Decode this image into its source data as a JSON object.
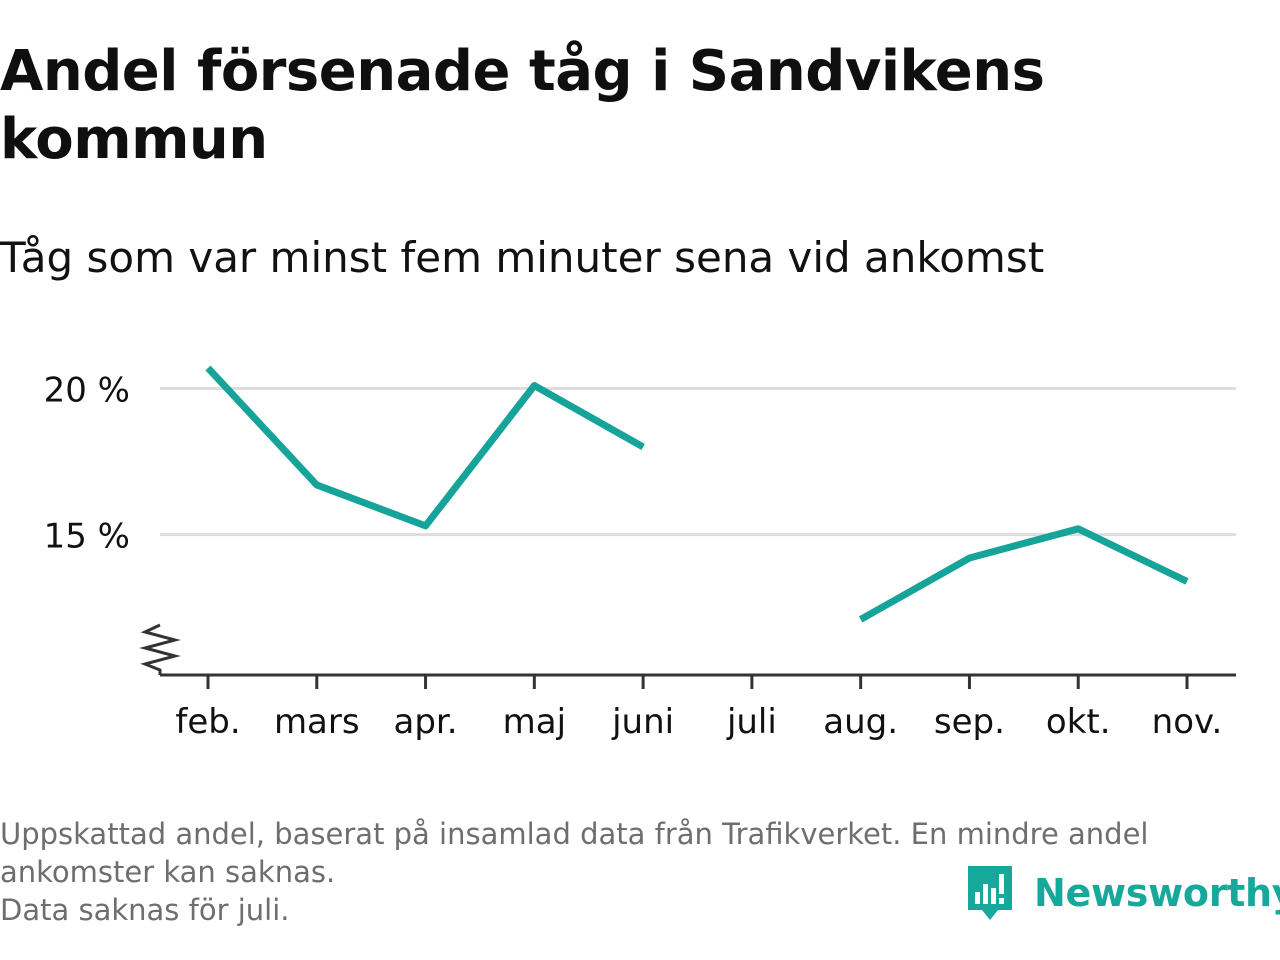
{
  "title": "Andel försenade tåg i Sandvikens kommun",
  "subtitle": "Tåg som var minst fem minuter sena vid ankomst",
  "footer": {
    "line1": "Uppskattad andel, baserat på insamlad data från Trafikverket. En mindre andel",
    "line2": "ankomster kan saknas.",
    "line3": "Data saknas för juli."
  },
  "brand": {
    "name": "Newsworthy",
    "color": "#16a89a",
    "icon": "newsworthy-logo-icon"
  },
  "colors": {
    "line": "#16a39a",
    "grid": "#dddddd",
    "axis": "#333333",
    "text": "#111111",
    "footer": "#6e6e6e"
  },
  "chart_data": {
    "type": "line",
    "categories": [
      "feb.",
      "mars",
      "apr.",
      "maj",
      "juni",
      "juli",
      "aug.",
      "sep.",
      "okt.",
      "nov."
    ],
    "series": [
      {
        "values": [
          20.7,
          16.7,
          15.3,
          20.1,
          18.0,
          null,
          12.1,
          14.2,
          15.2,
          13.4
        ]
      }
    ],
    "yticks": [
      15,
      20
    ],
    "ytick_labels": [
      "15 %",
      "20 %"
    ],
    "ylim": [
      10.2,
      22
    ],
    "y_axis_break": true,
    "grid": true,
    "xlabel": "",
    "ylabel": ""
  }
}
